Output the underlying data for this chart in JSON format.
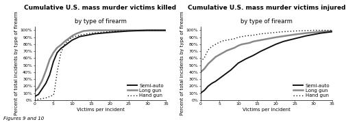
{
  "title1_line1": "Cumulative U.S. mass murder victims killed",
  "title1_line2": "by type of firearm",
  "title2_line1": "Cumulative U.S. mass murder victims injured",
  "title2_line2": "by type of firearm",
  "ylabel": "Percent of total incidents by type of firearm",
  "xlabel": "Victims per incident",
  "footer": "Figures 9 and 10",
  "xlim": [
    0,
    35
  ],
  "ylim": [
    0,
    105
  ],
  "yticks": [
    0,
    10,
    20,
    30,
    40,
    50,
    60,
    70,
    80,
    90,
    100
  ],
  "xticks": [
    0,
    5,
    10,
    15,
    20,
    25,
    30,
    35
  ],
  "killed_semiauto_x": [
    0,
    1,
    2,
    3,
    4,
    5,
    6,
    7,
    8,
    9,
    10,
    12,
    14,
    16,
    20,
    25,
    30,
    35
  ],
  "killed_semiauto_y": [
    5,
    8,
    16,
    24,
    36,
    55,
    68,
    74,
    78,
    82,
    86,
    91,
    93,
    95,
    97,
    99,
    100,
    100
  ],
  "killed_longgun_x": [
    0,
    1,
    2,
    3,
    4,
    5,
    6,
    7,
    8,
    9,
    10,
    11,
    12,
    13,
    15,
    20,
    35
  ],
  "killed_longgun_y": [
    12,
    18,
    28,
    42,
    58,
    68,
    75,
    79,
    84,
    88,
    92,
    95,
    97,
    99,
    100,
    100,
    100
  ],
  "killed_handgun_x": [
    0,
    1,
    2,
    3,
    4,
    5,
    5.2,
    6,
    7,
    8,
    9,
    10,
    12,
    15,
    20,
    22,
    25,
    30,
    35
  ],
  "killed_handgun_y": [
    0,
    1,
    2,
    3,
    5,
    7,
    10,
    40,
    68,
    80,
    86,
    90,
    93,
    96,
    98,
    99,
    99,
    100,
    100
  ],
  "injured_semiauto_x": [
    0,
    1,
    2,
    3,
    4,
    5,
    6,
    7,
    8,
    9,
    10,
    12,
    14,
    16,
    18,
    20,
    22,
    25,
    28,
    30,
    32,
    35
  ],
  "injured_semiauto_y": [
    10,
    14,
    20,
    24,
    27,
    31,
    35,
    39,
    43,
    48,
    53,
    59,
    64,
    70,
    75,
    80,
    84,
    88,
    92,
    94,
    96,
    98
  ],
  "injured_longgun_x": [
    0,
    1,
    2,
    3,
    4,
    5,
    6,
    7,
    8,
    9,
    10,
    11,
    12,
    13,
    14,
    15,
    16,
    18,
    20,
    25,
    28,
    30,
    32,
    35
  ],
  "injured_longgun_y": [
    40,
    45,
    52,
    57,
    62,
    65,
    68,
    71,
    73,
    75,
    78,
    80,
    81,
    82,
    84,
    85,
    86,
    88,
    90,
    94,
    96,
    97,
    98,
    99
  ],
  "injured_handgun_x": [
    0,
    1,
    2,
    3,
    4,
    5,
    6,
    7,
    8,
    9,
    10,
    11,
    12,
    14,
    16,
    18,
    20,
    22,
    25,
    30,
    35
  ],
  "injured_handgun_y": [
    55,
    61,
    72,
    77,
    80,
    83,
    85,
    86,
    87,
    88,
    90,
    91,
    92,
    93,
    95,
    96,
    97,
    98,
    99,
    100,
    100
  ],
  "color_semiauto": "#111111",
  "color_longgun": "#888888",
  "color_handgun": "#111111",
  "lw_semiauto": 1.4,
  "lw_longgun": 1.8,
  "lw_handgun": 1.0,
  "title_fontsize": 6.0,
  "title_bold_fontsize": 6.5,
  "tick_fontsize": 4.5,
  "label_fontsize": 5.0,
  "legend_fontsize": 5.0,
  "footer_fontsize": 5.0
}
